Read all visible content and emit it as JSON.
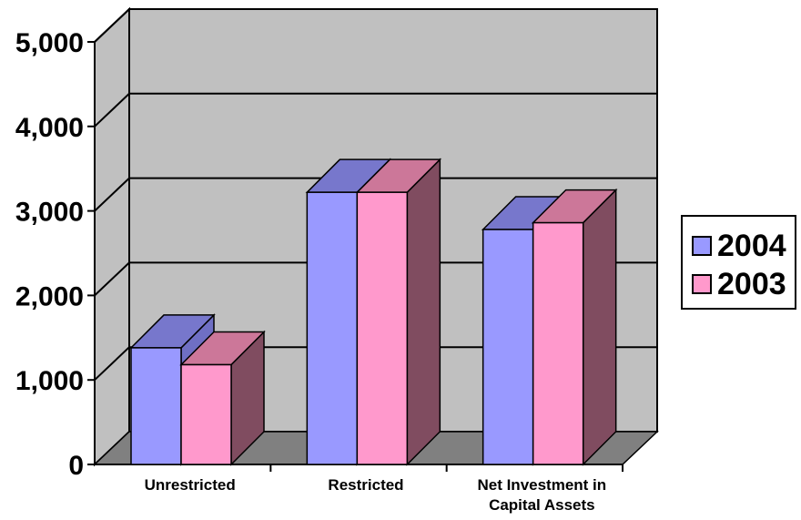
{
  "chart_data": {
    "type": "bar",
    "title": "",
    "xlabel": "",
    "ylabel": "",
    "categories": [
      "Unrestricted",
      "Restricted",
      "Net Investment in Capital Assets"
    ],
    "category_lines": [
      [
        "Unrestricted"
      ],
      [
        "Restricted"
      ],
      [
        "Net Investment in",
        "Capital Assets"
      ]
    ],
    "series": [
      {
        "name": "2004",
        "values": [
          1380,
          3220,
          2780
        ],
        "color": "#9999ff"
      },
      {
        "name": "2003",
        "values": [
          1180,
          3220,
          2860
        ],
        "color": "#ff99cc"
      }
    ],
    "ylim": [
      0,
      5000
    ],
    "yticks": [
      0,
      1000,
      2000,
      3000,
      4000,
      5000
    ],
    "ytick_labels": [
      "0",
      "1,000",
      "2,000",
      "3,000",
      "4,000",
      "5,000"
    ],
    "grid": true,
    "legend_position": "right",
    "style": "3d-clustered-column",
    "colors": {
      "wall": "#c0c0c0",
      "floor": "#808080",
      "side_2004": "#6f6fc4",
      "side_2003": "#804c60",
      "top_2004": "#7777cc",
      "top_2003": "#cc7799"
    }
  },
  "legend": {
    "items": [
      "2004",
      "2003"
    ]
  }
}
